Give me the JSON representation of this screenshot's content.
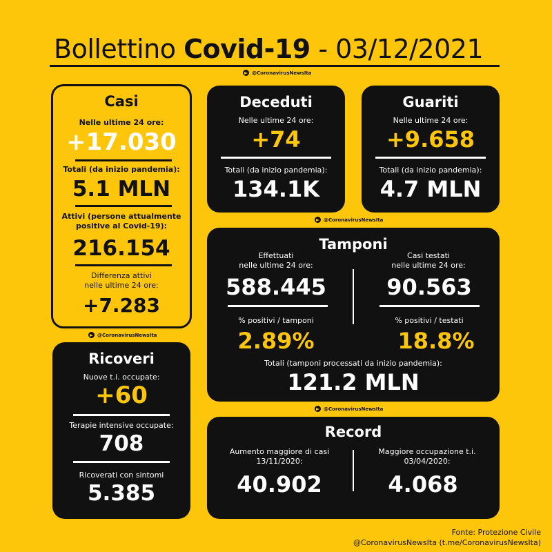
{
  "header": {
    "title_prefix": "Bollettino ",
    "title_bold": "Covid-19",
    "title_suffix": " - 03/12/2021",
    "handle": "@CoronavirusNewsIta"
  },
  "casi": {
    "title": "Casi",
    "new_label": "Nelle ultime 24 ore:",
    "new_value": "+17.030",
    "total_label": "Totali (da inizio pandemia):",
    "total_value": "5.1 MLN",
    "active_label_1": "Attivi (persone attualmente",
    "active_label_2": "positive al Covid-19):",
    "active_value": "216.154",
    "diff_label_1": "Differenza attivi",
    "diff_label_2": "nelle ultime 24 ore:",
    "diff_value": "+7.283"
  },
  "deceduti": {
    "title": "Deceduti",
    "new_label": "Nelle ultime 24 ore:",
    "new_value": "+74",
    "total_label": "Totali (da inizio pandemia):",
    "total_value": "134.1K"
  },
  "guariti": {
    "title": "Guariti",
    "new_label": "Nelle ultime 24 ore:",
    "new_value": "+9.658",
    "total_label": "Totali (da inizio pandemia):",
    "total_value": "4.7 MLN"
  },
  "tamponi": {
    "title": "Tamponi",
    "left_label_1": "Effettuati",
    "left_label_2": "nelle ultime 24 ore:",
    "left_value": "588.445",
    "left_pct_label": "% positivi / tamponi",
    "left_pct_value": "2.89%",
    "right_label_1": "Casi testati",
    "right_label_2": "nelle ultime 24 ore:",
    "right_value": "90.563",
    "right_pct_label": "% positivi / testati",
    "right_pct_value": "18.8%",
    "total_label": "Totali (tamponi processati da inizio pandemia):",
    "total_value": "121.2 MLN"
  },
  "ricoveri": {
    "title": "Ricoveri",
    "new_ti_label": "Nuove t.i. occupate:",
    "new_ti_value": "+60",
    "ti_label": "Terapie intensive occupate:",
    "ti_value": "708",
    "symptoms_label": "Ricoverati con sintomi",
    "symptoms_value": "5.385"
  },
  "record": {
    "title": "Record",
    "left_label_1": "Aumento maggiore di casi",
    "left_label_2": "13/11/2020:",
    "left_value": "40.902",
    "right_label_1": "Maggiore occupazione t.i.",
    "right_label_2": "03/04/2020:",
    "right_value": "4.068"
  },
  "footer": {
    "source": "Fonte: Protezione Civile",
    "credit": "@CoronavirusNewsIta (t.me/CoronavirusNewsIta)"
  },
  "colors": {
    "background": "#fdc60a",
    "card_dark": "#111111",
    "accent": "#fdc60a"
  },
  "icons": [
    "telegram-icon"
  ]
}
